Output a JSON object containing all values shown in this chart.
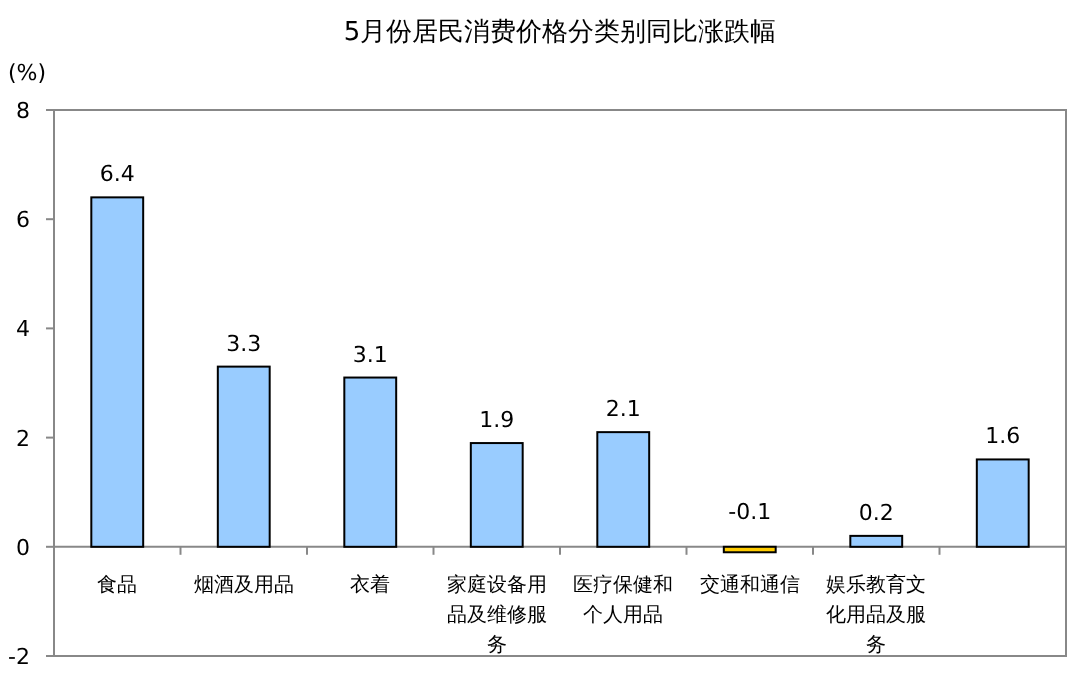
{
  "chart_data": {
    "type": "bar",
    "title": "5月份居民消费价格分类别同比涨跌幅",
    "ylabel": "(%)",
    "categories": [
      "食品",
      "烟酒及用品",
      "衣着",
      "家庭设备用品及维修服务",
      "医疗保健和个人用品",
      "交通和通信",
      "娱乐教育文化用品及服务",
      null
    ],
    "values": [
      6.4,
      3.3,
      3.1,
      1.9,
      2.1,
      -0.1,
      0.2,
      1.6
    ],
    "colors": [
      "#99ccff",
      "#99ccff",
      "#99ccff",
      "#99ccff",
      "#99ccff",
      "#ffcc00",
      "#99ccff",
      "#99ccff"
    ],
    "ylim": [
      -2,
      8
    ],
    "yticks": [
      -2,
      0,
      2,
      4,
      6,
      8
    ],
    "data_labels": true
  }
}
